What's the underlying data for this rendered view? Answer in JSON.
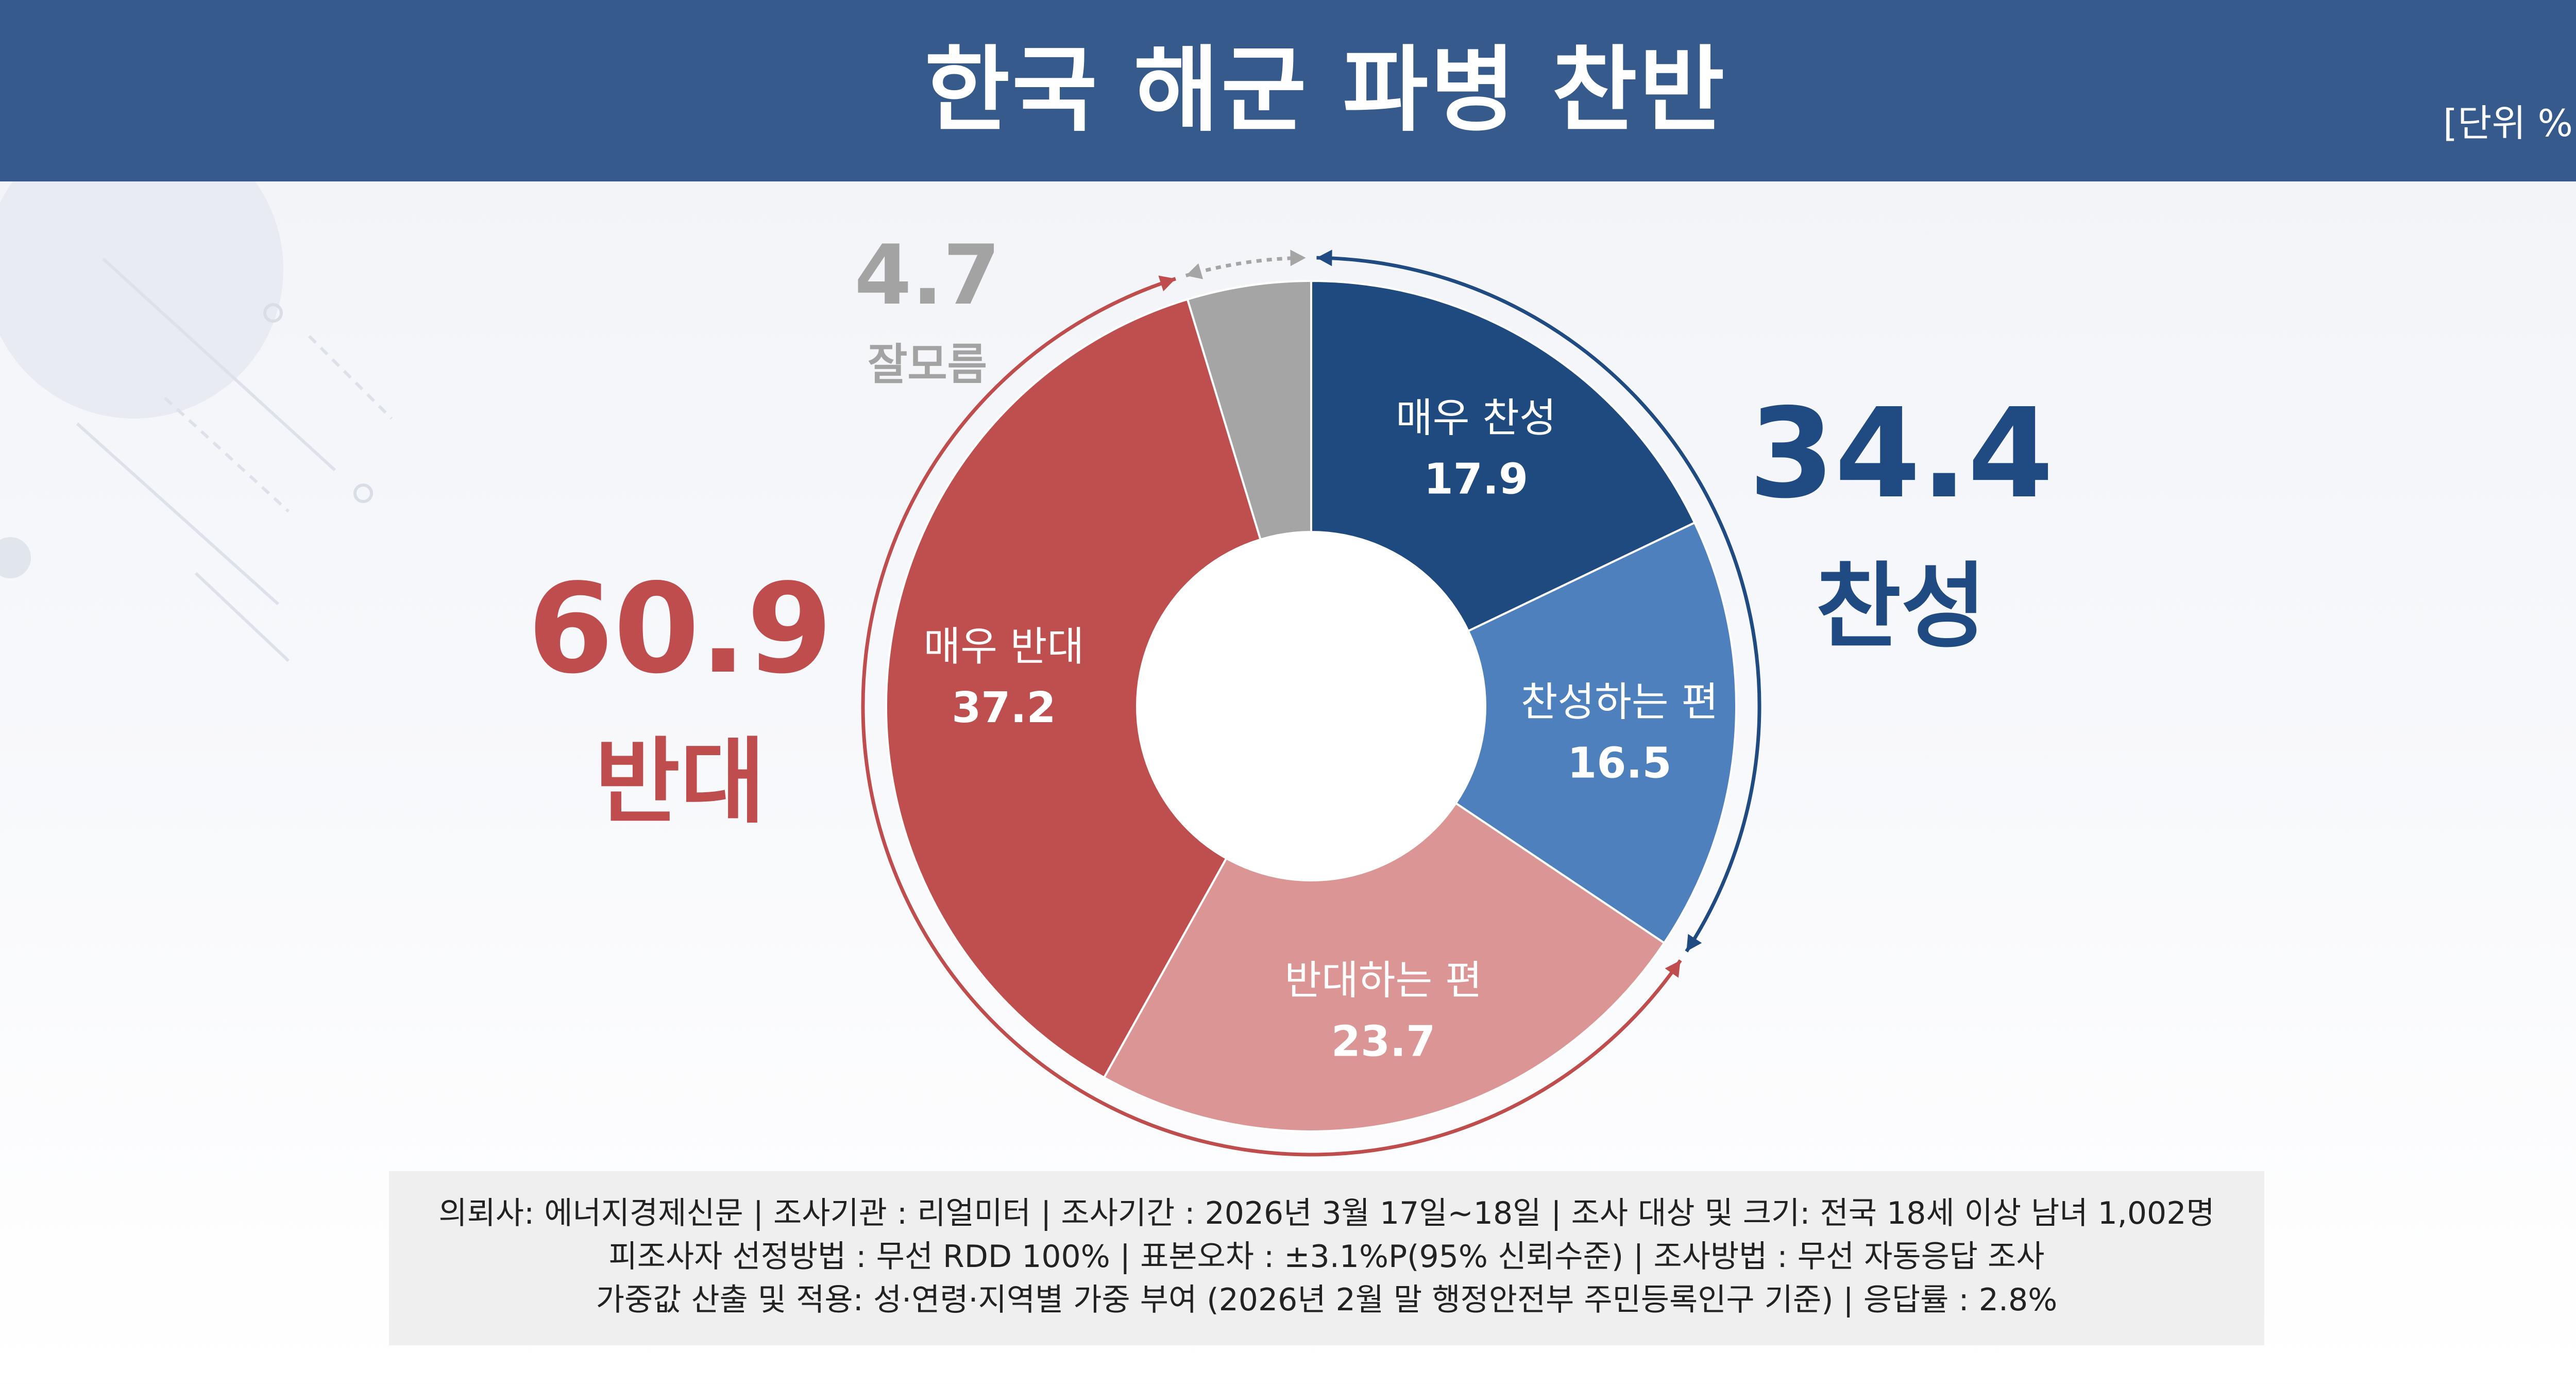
{
  "header": {
    "title": "한국 해군 파병 찬반",
    "unit": "[단위 %]"
  },
  "summary": {
    "support": {
      "value": "34.4",
      "label": "찬성"
    },
    "oppose": {
      "value": "60.9",
      "label": "반대"
    },
    "unknown": {
      "value": "4.7",
      "label": "잘모름"
    }
  },
  "chart_data": {
    "type": "pie",
    "donut": true,
    "unit": "%",
    "slices": [
      {
        "label": "매우 찬성",
        "value": 17.9,
        "color": "#1f4a80"
      },
      {
        "label": "찬성하는 편",
        "value": 16.5,
        "color": "#4d80bd"
      },
      {
        "label": "반대하는 편",
        "value": 23.7,
        "color": "#dc9595"
      },
      {
        "label": "매우 반대",
        "value": 37.2,
        "color": "#bf4f4f"
      },
      {
        "label": "잘모름",
        "value": 4.7,
        "color": "#a5a5a5"
      }
    ],
    "groups": [
      {
        "label": "찬성",
        "value": 34.4,
        "color": "#1f4a82"
      },
      {
        "label": "반대",
        "value": 60.9,
        "color": "#bf4d4d"
      }
    ]
  },
  "footer": {
    "line1": "의뢰사: 에너지경제신문 | 조사기관 : 리얼미터  |  조사기간 : 2026년 3월 17일~18일 | 조사 대상 및 크기: 전국 18세 이상 남녀 1,002명",
    "line2": "피조사자 선정방법 : 무선  RDD 100% | 표본오차 : ±3.1%P(95% 신뢰수준) | 조사방법 : 무선 자동응답 조사",
    "line3": "가중값 산출 및 적용: 성·연령·지역별 가중 부여 (2026년 2월 말 행정안전부 주민등록인구 기준) | 응답률 : 2.8%"
  }
}
